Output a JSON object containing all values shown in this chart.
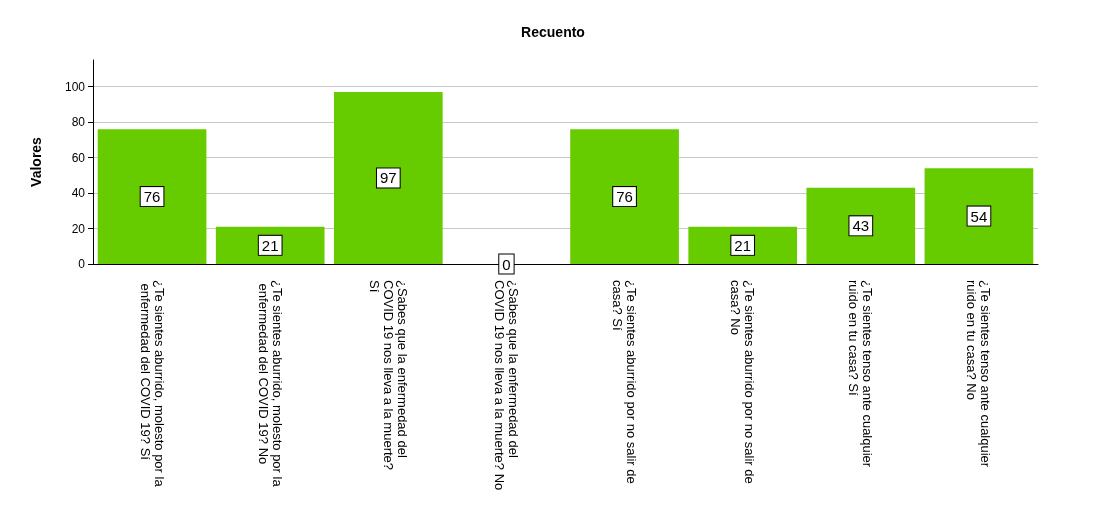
{
  "chart_data": {
    "type": "bar",
    "title": "Recuento",
    "ylabel": "Valores",
    "categories": [
      "¿Te sientes aburrido, molesto por la enfermedad del COVID 19? Sí",
      "¿Te sientes aburrido, molesto por la enfermedad del COVID 19? No",
      "¿Sabes que la enfermedad del COVID 19 nos lleva a la muerte? Sí",
      "¿Sabes que la enfermedad del COVID 19 nos lleva a la muerte? No",
      "¿Te sientes aburrido por no salir de casa? Sí",
      "¿Te sientes aburrido por no salir de casa? No",
      "¿Te sientes tenso ante cualquier ruido en tu casa? Sí",
      "¿Te sientes tenso ante cualquier ruido en tu casa? No"
    ],
    "values": [
      76,
      21,
      97,
      0,
      76,
      21,
      43,
      54
    ],
    "color": "#66cc00",
    "ylim": [
      0,
      115
    ],
    "yticks": [
      0,
      20,
      40,
      60,
      80,
      100
    ],
    "grid": "y",
    "data_labels": true
  }
}
